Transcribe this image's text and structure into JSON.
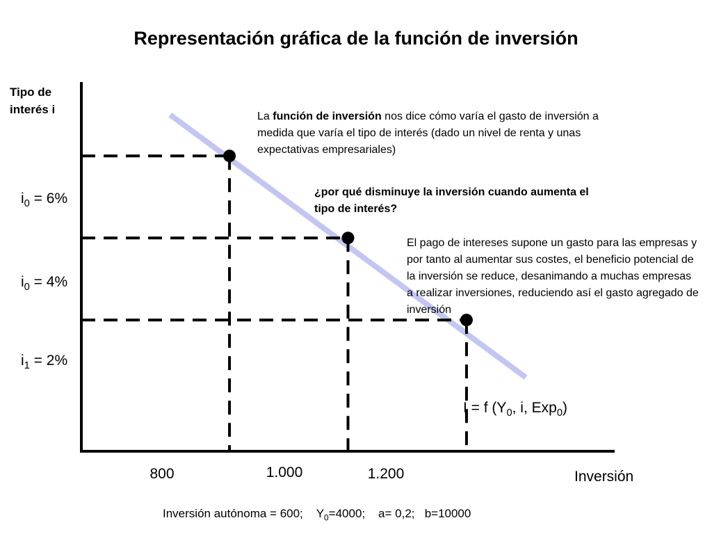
{
  "title": "Representación gráfica de la función de inversión",
  "chart_data": {
    "type": "line",
    "title": "Representación gráfica de la función de inversión",
    "xlabel": "Inversión",
    "ylabel_line1": "Tipo de",
    "ylabel_line2": "interés i",
    "x_ticks": [
      "800",
      "1.000",
      "1.200"
    ],
    "y_ticks": [
      {
        "base": "i",
        "sub": "0",
        "rest": " = 6%"
      },
      {
        "base": "i",
        "sub": "0",
        "rest": " = 4%"
      },
      {
        "base": "i",
        "sub": "1",
        "rest": " = 2%"
      }
    ],
    "points": [
      {
        "x": 800,
        "y": 6
      },
      {
        "x": 1000,
        "y": 4
      },
      {
        "x": 1200,
        "y": 2
      }
    ],
    "line_extent": {
      "x": [
        700,
        1300
      ],
      "y": [
        7.0,
        0.6
      ]
    },
    "xlim": [
      550,
      1450
    ],
    "ylim": [
      -1.2,
      7.8
    ],
    "line_color": "#c3c6f2",
    "curve_label": {
      "prefix": "I = f (Y",
      "sub1": "0",
      "mid": ", i, Exp",
      "sub2": "0",
      "suffix": ")"
    }
  },
  "notes": {
    "note1_pre": "La ",
    "note1_bold": "función de inversión",
    "note1_post": " nos dice cómo varía el gasto de inversión a medida que varía el tipo de interés (dado un nivel de renta y unas expectativas empresariales)",
    "question": "¿por qué disminuye la inversión cuando aumenta el tipo de interés?",
    "answer": "El pago de intereses supone un gasto para las empresas y por tanto al aumentar sus costes, el beneficio potencial de la inversión se reduce, desanimando a muchas empresas a realizar inversiones, reduciendo así el gasto agregado de inversión"
  },
  "footer": {
    "part1": "Inversión autónoma = 600;",
    "y_base": "Y",
    "y_sub": "0",
    "y_rest": "=4000;",
    "a": "a= 0,2;",
    "b": "b=10000"
  }
}
